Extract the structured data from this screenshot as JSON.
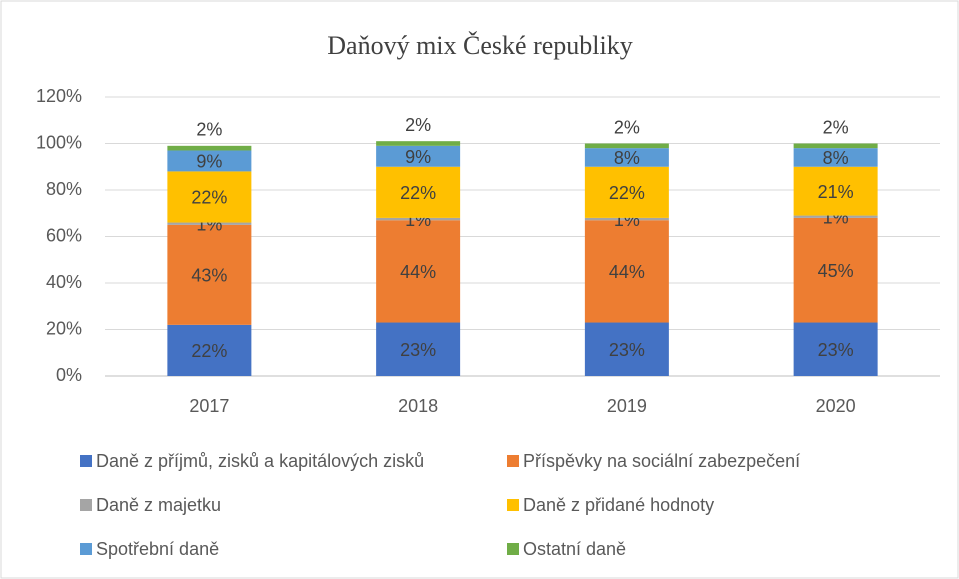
{
  "chart_data": {
    "type": "bar",
    "stacked": true,
    "title": "Daňový mix České republiky",
    "categories": [
      "2017",
      "2018",
      "2019",
      "2020"
    ],
    "series": [
      {
        "name": "Daně z příjmů, zisků a kapitálových zisků",
        "color": "#4472c4",
        "values": [
          22,
          23,
          23,
          23
        ],
        "value_labels": [
          "22%",
          "23%",
          "23%",
          "23%"
        ]
      },
      {
        "name": "Příspěvky na sociální zabezpečení",
        "color": "#ed7d31",
        "values": [
          43,
          44,
          44,
          45
        ],
        "value_labels": [
          "43%",
          "44%",
          "44%",
          "45%"
        ]
      },
      {
        "name": "Daně z majetku",
        "color": "#a5a5a5",
        "values": [
          1,
          1,
          1,
          1
        ],
        "value_labels": [
          "1%",
          "1%",
          "1%",
          "1%"
        ]
      },
      {
        "name": "Daně z přidané hodnoty",
        "color": "#ffc000",
        "values": [
          22,
          22,
          22,
          21
        ],
        "value_labels": [
          "22%",
          "22%",
          "22%",
          "21%"
        ]
      },
      {
        "name": "Spotřební daně",
        "color": "#5b9bd5",
        "values": [
          9,
          9,
          8,
          8
        ],
        "value_labels": [
          "9%",
          "9%",
          "8%",
          "8%"
        ]
      },
      {
        "name": "Ostatní daně",
        "color": "#70ad47",
        "values": [
          2,
          2,
          2,
          2
        ],
        "value_labels": [
          "2%",
          "2%",
          "2%",
          "2%"
        ]
      }
    ],
    "ylim": [
      0,
      120
    ],
    "yticks": [
      {
        "value": 0,
        "label": "0%"
      },
      {
        "value": 20,
        "label": "20%"
      },
      {
        "value": 40,
        "label": "40%"
      },
      {
        "value": 60,
        "label": "60%"
      },
      {
        "value": 80,
        "label": "80%"
      },
      {
        "value": 100,
        "label": "100%"
      },
      {
        "value": 120,
        "label": "120%"
      }
    ],
    "grid": true,
    "legend": "bottom"
  }
}
